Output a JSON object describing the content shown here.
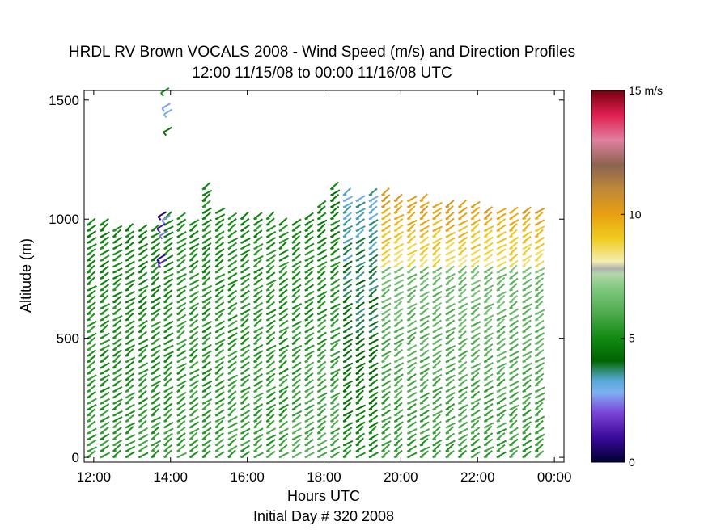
{
  "chart_data": {
    "type": "scatter",
    "title": "HRDL RV Brown VOCALS 2008 - Wind Speed (m/s) and Direction Profiles",
    "subtitle": "12:00 11/15/08 to 00:00 11/16/08  UTC",
    "xlabel": "Hours UTC",
    "xlabel2": "Initial Day # 320  2008",
    "ylabel": "Altitude (m)",
    "xlim": [
      11.75,
      24.25
    ],
    "ylim": [
      -20,
      1540
    ],
    "x_ticks": [
      12,
      14,
      16,
      18,
      20,
      22,
      24
    ],
    "x_tick_labels": [
      "12:00",
      "14:00",
      "16:00",
      "18:00",
      "20:00",
      "22:00",
      "00:00"
    ],
    "y_ticks": [
      0,
      500,
      1000,
      1500
    ],
    "y_tick_labels": [
      "0",
      "500",
      "1000",
      "1500"
    ],
    "colorbar": {
      "range": [
        0,
        15
      ],
      "unit": "m/s",
      "tick_values": [
        0,
        5,
        10,
        15
      ],
      "tick_labels": [
        "0",
        "5",
        "10",
        "15 m/s"
      ],
      "stops": [
        {
          "v": 0.0,
          "c": "#000033"
        },
        {
          "v": 1.0,
          "c": "#3a0a9a"
        },
        {
          "v": 2.0,
          "c": "#7b44d8"
        },
        {
          "v": 2.8,
          "c": "#7fb0f2"
        },
        {
          "v": 3.3,
          "c": "#56a8d8"
        },
        {
          "v": 3.7,
          "c": "#2e8a6c"
        },
        {
          "v": 4.1,
          "c": "#006400"
        },
        {
          "v": 5.0,
          "c": "#118a11"
        },
        {
          "v": 6.0,
          "c": "#4eaa4e"
        },
        {
          "v": 7.0,
          "c": "#80c880"
        },
        {
          "v": 7.6,
          "c": "#b0d8a8"
        },
        {
          "v": 7.8,
          "c": "#b0b0b0"
        },
        {
          "v": 8.1,
          "c": "#f2eeb0"
        },
        {
          "v": 9.0,
          "c": "#f0cc20"
        },
        {
          "v": 10.0,
          "c": "#e8a010"
        },
        {
          "v": 11.0,
          "c": "#c08838"
        },
        {
          "v": 12.0,
          "c": "#8a6450"
        },
        {
          "v": 13.0,
          "c": "#e080a0"
        },
        {
          "v": 14.0,
          "c": "#e02050"
        },
        {
          "v": 15.0,
          "c": "#7a0010"
        }
      ]
    },
    "profile_times": [
      11.83,
      12.17,
      12.5,
      12.83,
      13.17,
      13.5,
      13.83,
      14.17,
      14.5,
      14.83,
      15.17,
      15.5,
      15.83,
      16.17,
      16.5,
      16.83,
      17.17,
      17.5,
      17.83,
      18.17,
      18.5,
      18.83,
      19.17,
      19.5,
      19.83,
      20.17,
      20.5,
      20.83,
      21.17,
      21.5,
      21.83,
      22.17,
      22.5,
      22.83,
      23.17,
      23.5
    ],
    "profile_tops": [
      990,
      975,
      960,
      950,
      955,
      960,
      1010,
      1000,
      990,
      1130,
      1040,
      1020,
      1010,
      1000,
      1000,
      990,
      985,
      1020,
      1060,
      1130,
      1110,
      1090,
      1110,
      1100,
      1090,
      1090,
      1080,
      1070,
      1060,
      1060,
      1050,
      1040,
      1040,
      1040,
      1035,
      1030
    ],
    "profile_data_note": "",
    "sample_spacing_m": 25,
    "wind_series": [
      {
        "t": [
          11.75,
          14.0
        ],
        "levels": [
          [
            0,
            1000,
            5.5,
            4.8
          ]
        ]
      },
      {
        "t": [
          14.0,
          17.0
        ],
        "levels": [
          [
            0,
            1130,
            5.6,
            5.0
          ]
        ]
      },
      {
        "t": [
          17.0,
          18.3
        ],
        "levels": [
          [
            0,
            1130,
            6.0,
            4.6
          ]
        ]
      },
      {
        "t": [
          18.3,
          19.5
        ],
        "levels": [
          [
            0,
            1130,
            5.0,
            3.2
          ]
        ]
      },
      {
        "t": [
          19.5,
          23.6
        ],
        "levels": [
          [
            0,
            780,
            5.5,
            6.6
          ],
          [
            780,
            1110,
            8.5,
            10.5
          ]
        ]
      }
    ],
    "sparse_points": [
      {
        "x": 13.75,
        "y": 1530,
        "speed": 5.0
      },
      {
        "x": 13.78,
        "y": 1465,
        "speed": 2.7
      },
      {
        "x": 13.83,
        "y": 1440,
        "speed": 2.9
      },
      {
        "x": 13.82,
        "y": 1365,
        "speed": 4.5
      },
      {
        "x": 13.68,
        "y": 1010,
        "speed": 0.8
      },
      {
        "x": 13.78,
        "y": 995,
        "speed": 2.6
      },
      {
        "x": 13.65,
        "y": 960,
        "speed": 1.2
      },
      {
        "x": 13.72,
        "y": 930,
        "speed": 2.4
      },
      {
        "x": 13.65,
        "y": 830,
        "speed": 0.9
      },
      {
        "x": 13.68,
        "y": 810,
        "speed": 1.5
      }
    ]
  }
}
